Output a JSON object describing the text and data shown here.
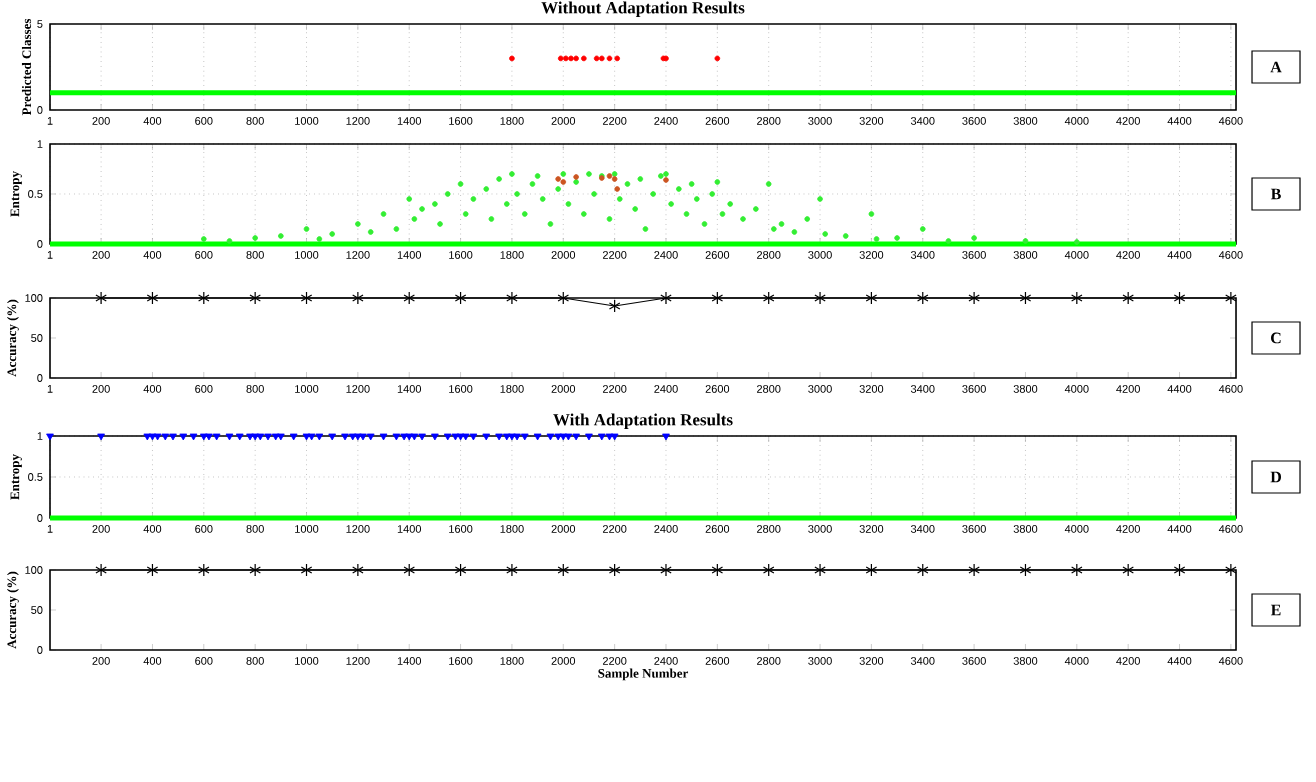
{
  "chart_data": [
    {
      "type": "scatter",
      "title": "Without Adaptation Results",
      "ylabel": "Predicted Classes",
      "xlim": [
        1,
        4620
      ],
      "ylim": [
        0,
        5
      ],
      "xticks": [
        1,
        200,
        400,
        600,
        800,
        1000,
        1200,
        1400,
        1600,
        1800,
        2000,
        2200,
        2400,
        2600,
        2800,
        3000,
        3200,
        3400,
        3600,
        3800,
        4000,
        4200,
        4400,
        4600
      ],
      "yticks": [
        0,
        5
      ],
      "grid": "x",
      "marker": "circle",
      "annotations": [
        "A"
      ],
      "series": [
        {
          "type": "line",
          "marker": "none",
          "color": "#00ff00",
          "x": [
            1,
            4620
          ],
          "values": [
            1,
            1
          ]
        },
        {
          "color": "#ff0000",
          "x": [
            1800,
            1990,
            2010,
            2030,
            2050,
            2080,
            2130,
            2150,
            2180,
            2210,
            2390,
            2400,
            2600
          ],
          "values": [
            3,
            3,
            3,
            3,
            3,
            3,
            3,
            3,
            3,
            3,
            3,
            3,
            3
          ]
        }
      ]
    },
    {
      "type": "scatter",
      "ylabel": "Entropy",
      "xlim": [
        1,
        4620
      ],
      "ylim": [
        0,
        1
      ],
      "xticks": [
        1,
        200,
        400,
        600,
        800,
        1000,
        1200,
        1400,
        1600,
        1800,
        2000,
        2200,
        2400,
        2600,
        2800,
        3000,
        3200,
        3400,
        3600,
        3800,
        4000,
        4200,
        4400,
        4600
      ],
      "yticks": [
        0,
        0.5,
        1
      ],
      "grid": true,
      "marker": "circle",
      "annotations": [
        "B"
      ],
      "series": [
        {
          "type": "line",
          "marker": "none",
          "color": "#00ff00",
          "x": [
            1,
            4620
          ],
          "values": [
            0,
            0
          ]
        },
        {
          "color": "#33ee33",
          "x": [
            600,
            700,
            800,
            900,
            1000,
            1050,
            1100,
            1200,
            1250,
            1300,
            1350,
            1400,
            1420,
            1450,
            1500,
            1520,
            1550,
            1600,
            1620,
            1650,
            1700,
            1720,
            1750,
            1780,
            1800,
            1820,
            1850,
            1880,
            1900,
            1920,
            1950,
            1980,
            2000,
            2020,
            2050,
            2080,
            2100,
            2120,
            2150,
            2180,
            2200,
            2220,
            2250,
            2280,
            2300,
            2320,
            2350,
            2380,
            2400,
            2420,
            2450,
            2480,
            2500,
            2520,
            2550,
            2580,
            2600,
            2620,
            2650,
            2700,
            2750,
            2800,
            2820,
            2850,
            2900,
            2950,
            3000,
            3020,
            3100,
            3200,
            3220,
            3300,
            3400,
            3500,
            3600,
            3800,
            4000
          ],
          "values": [
            0.05,
            0.03,
            0.06,
            0.08,
            0.15,
            0.05,
            0.1,
            0.2,
            0.12,
            0.3,
            0.15,
            0.45,
            0.25,
            0.35,
            0.4,
            0.2,
            0.5,
            0.6,
            0.3,
            0.45,
            0.55,
            0.25,
            0.65,
            0.4,
            0.7,
            0.5,
            0.3,
            0.6,
            0.68,
            0.45,
            0.2,
            0.55,
            0.7,
            0.4,
            0.62,
            0.3,
            0.7,
            0.5,
            0.68,
            0.25,
            0.7,
            0.45,
            0.6,
            0.35,
            0.65,
            0.15,
            0.5,
            0.68,
            0.7,
            0.4,
            0.55,
            0.3,
            0.6,
            0.45,
            0.2,
            0.5,
            0.62,
            0.3,
            0.4,
            0.25,
            0.35,
            0.6,
            0.15,
            0.2,
            0.12,
            0.25,
            0.45,
            0.1,
            0.08,
            0.3,
            0.05,
            0.06,
            0.15,
            0.03,
            0.06,
            0.03,
            0.02
          ]
        },
        {
          "color": "#cc5522",
          "x": [
            1980,
            2000,
            2050,
            2150,
            2180,
            2200,
            2210,
            2400
          ],
          "values": [
            0.65,
            0.62,
            0.67,
            0.66,
            0.68,
            0.65,
            0.55,
            0.64
          ]
        }
      ]
    },
    {
      "type": "line",
      "ylabel": "Accuracy (%)",
      "xlim": [
        1,
        4620
      ],
      "ylim": [
        0,
        100
      ],
      "xticks": [
        1,
        200,
        400,
        600,
        800,
        1000,
        1200,
        1400,
        1600,
        1800,
        2000,
        2200,
        2400,
        2600,
        2800,
        3000,
        3200,
        3400,
        3600,
        3800,
        4000,
        4200,
        4400,
        4600
      ],
      "yticks": [
        0,
        50,
        100
      ],
      "marker": "cross",
      "annotations": [
        "C"
      ],
      "series": [
        {
          "color": "#000000",
          "x": [
            200,
            400,
            600,
            800,
            1000,
            1200,
            1400,
            1600,
            1800,
            2000,
            2200,
            2400,
            2600,
            2800,
            3000,
            3200,
            3400,
            3600,
            3800,
            4000,
            4200,
            4400,
            4600
          ],
          "values": [
            100,
            100,
            100,
            100,
            100,
            100,
            100,
            100,
            100,
            100,
            90,
            100,
            100,
            100,
            100,
            100,
            100,
            100,
            100,
            100,
            100,
            100,
            100
          ]
        }
      ]
    },
    {
      "type": "scatter",
      "title": "With Adaptation Results",
      "ylabel": "Entropy",
      "xlim": [
        1,
        4620
      ],
      "ylim": [
        0,
        1
      ],
      "xticks": [
        1,
        200,
        400,
        600,
        800,
        1000,
        1200,
        1400,
        1600,
        1800,
        2000,
        2200,
        2400,
        2600,
        2800,
        3000,
        3200,
        3400,
        3600,
        3800,
        4000,
        4200,
        4400,
        4600
      ],
      "yticks": [
        0,
        0.5,
        1
      ],
      "grid": true,
      "marker": "triangle",
      "annotations": [
        "D"
      ],
      "series": [
        {
          "type": "line",
          "marker": "none",
          "color": "#00ff00",
          "x": [
            1,
            4620
          ],
          "values": [
            0,
            0
          ]
        },
        {
          "color": "#0000ff",
          "x": [
            1,
            200,
            380,
            400,
            420,
            450,
            480,
            520,
            560,
            600,
            620,
            650,
            700,
            740,
            780,
            800,
            820,
            850,
            880,
            900,
            950,
            1000,
            1020,
            1050,
            1100,
            1150,
            1180,
            1200,
            1220,
            1250,
            1300,
            1350,
            1380,
            1400,
            1420,
            1450,
            1500,
            1550,
            1580,
            1600,
            1620,
            1650,
            1700,
            1750,
            1780,
            1800,
            1820,
            1850,
            1900,
            1950,
            1980,
            2000,
            2020,
            2050,
            2100,
            2150,
            2180,
            2200,
            2400
          ],
          "values": [
            1,
            1,
            1,
            1,
            1,
            1,
            1,
            1,
            1,
            1,
            1,
            1,
            1,
            1,
            1,
            1,
            1,
            1,
            1,
            1,
            1,
            1,
            1,
            1,
            1,
            1,
            1,
            1,
            1,
            1,
            1,
            1,
            1,
            1,
            1,
            1,
            1,
            1,
            1,
            1,
            1,
            1,
            1,
            1,
            1,
            1,
            1,
            1,
            1,
            1,
            1,
            1,
            1,
            1,
            1,
            1,
            1,
            1,
            1
          ]
        }
      ]
    },
    {
      "type": "line",
      "xlabel": "Sample Number",
      "ylabel": "Accuracy (%)",
      "xlim": [
        1,
        4620
      ],
      "ylim": [
        0,
        100
      ],
      "xticks": [
        200,
        400,
        600,
        800,
        1000,
        1200,
        1400,
        1600,
        1800,
        2000,
        2200,
        2400,
        2600,
        2800,
        3000,
        3200,
        3400,
        3600,
        3800,
        4000,
        4200,
        4400,
        4600
      ],
      "yticks": [
        0,
        50,
        100
      ],
      "marker": "cross",
      "annotations": [
        "E"
      ],
      "series": [
        {
          "color": "#000000",
          "x": [
            200,
            400,
            600,
            800,
            1000,
            1200,
            1400,
            1600,
            1800,
            2000,
            2200,
            2400,
            2600,
            2800,
            3000,
            3200,
            3400,
            3600,
            3800,
            4000,
            4200,
            4400,
            4600
          ],
          "values": [
            100,
            100,
            100,
            100,
            100,
            100,
            100,
            100,
            100,
            100,
            100,
            100,
            100,
            100,
            100,
            100,
            100,
            100,
            100,
            100,
            100,
            100,
            100
          ]
        }
      ]
    }
  ]
}
